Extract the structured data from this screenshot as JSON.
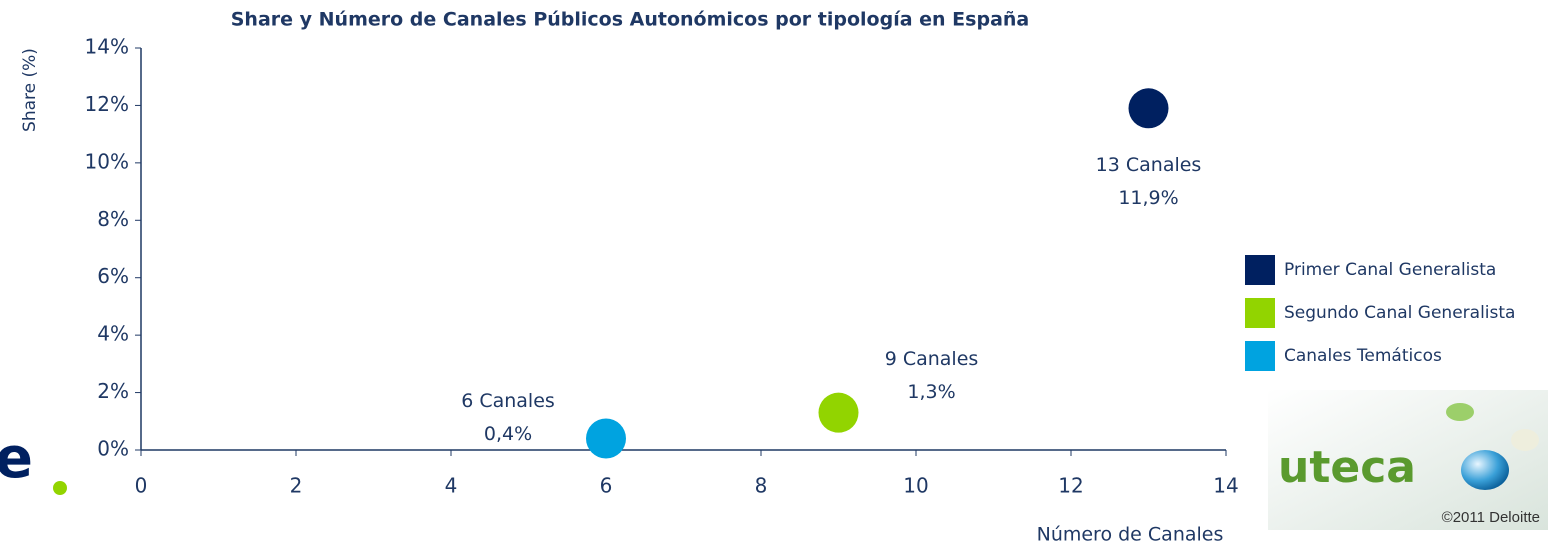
{
  "chart_data": {
    "type": "scatter",
    "title": "Share y Número de Canales Públicos Autonómicos por tipología en España",
    "xlabel": "Número de Canales",
    "ylabel": "Share (%)",
    "xlim": [
      0,
      14
    ],
    "xticks": [
      0,
      2,
      4,
      6,
      8,
      10,
      12,
      14
    ],
    "ylim": [
      0,
      14
    ],
    "yticks": [
      {
        "value": 0,
        "label": "0%"
      },
      {
        "value": 2,
        "label": "2%"
      },
      {
        "value": 4,
        "label": "4%"
      },
      {
        "value": 6,
        "label": "6%"
      },
      {
        "value": 8,
        "label": "8%"
      },
      {
        "value": 10,
        "label": "10%"
      },
      {
        "value": 12,
        "label": "12%"
      },
      {
        "value": 14,
        "label": "14%"
      }
    ],
    "legend": "right",
    "series": [
      {
        "name": "Primer Canal Generalista",
        "color": "#002060",
        "x": [
          13
        ],
        "x_labels": [
          "13 Canales"
        ],
        "values": [
          11.9
        ],
        "value_labels": [
          "11,9%"
        ]
      },
      {
        "name": "Segundo Canal Generalista",
        "color": "#92d400",
        "x": [
          9
        ],
        "x_labels": [
          "9 Canales"
        ],
        "values": [
          1.3
        ],
        "value_labels": [
          "1,3%"
        ]
      },
      {
        "name": "Canales Temáticos",
        "color": "#00a3e0",
        "x": [
          6
        ],
        "x_labels": [
          "6 Canales"
        ],
        "values": [
          0.4
        ],
        "value_labels": [
          "0,4%"
        ]
      }
    ]
  },
  "logo_text": "uteca",
  "copyright": "©2011 Deloitte",
  "fragment": "e"
}
